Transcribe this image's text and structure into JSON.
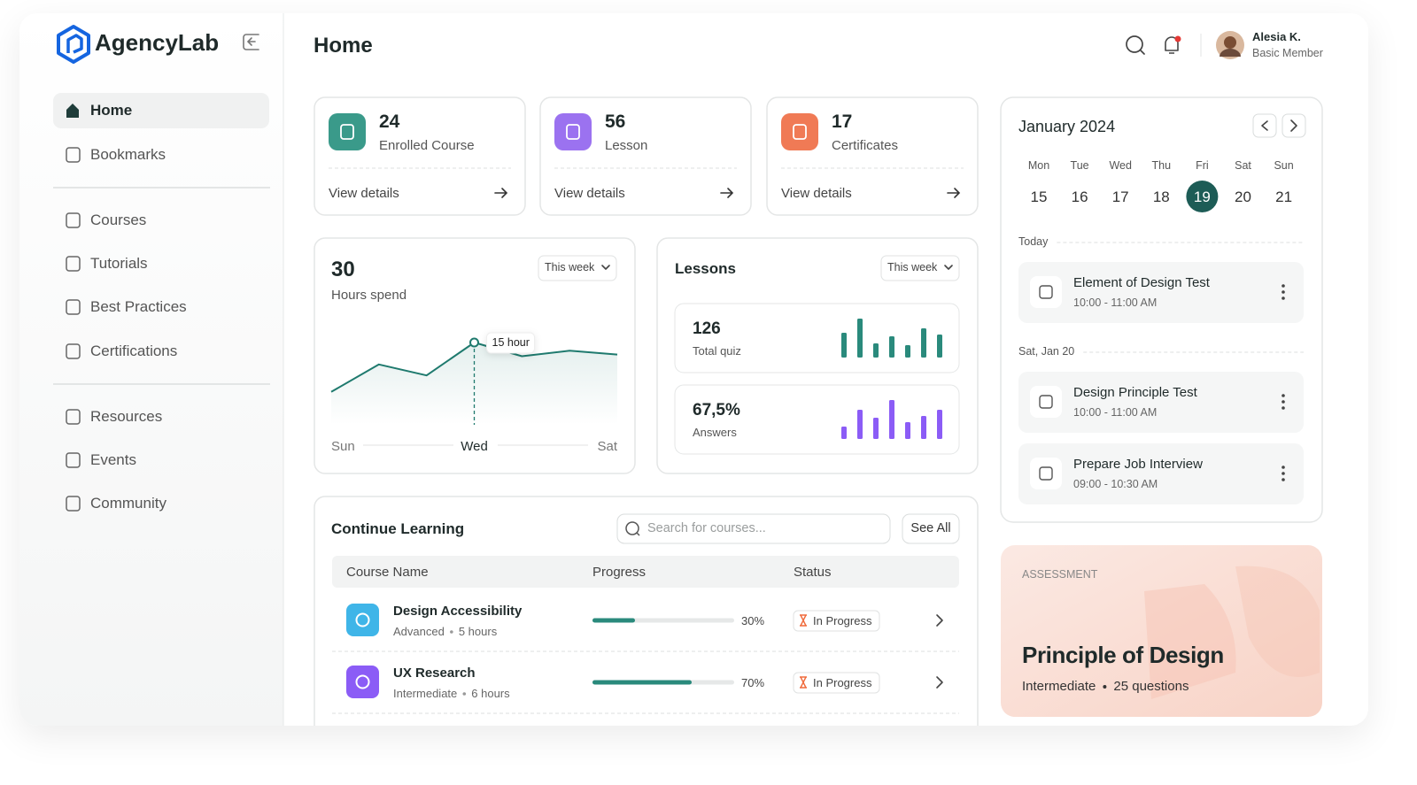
{
  "sidebar": {
    "brand": "AgencyLab",
    "nav_groups": [
      [
        {
          "label": "Home",
          "active": true
        },
        {
          "label": "Bookmarks"
        }
      ],
      [
        {
          "label": "Courses"
        },
        {
          "label": "Tutorials"
        },
        {
          "label": "Best Practices"
        },
        {
          "label": "Certifications"
        }
      ],
      [
        {
          "label": "Resources"
        },
        {
          "label": "Events"
        },
        {
          "label": "Community"
        }
      ]
    ]
  },
  "header": {
    "title": "Home",
    "user": {
      "name": "Alesia K.",
      "role": "Basic Member"
    }
  },
  "stats": [
    {
      "value": 24,
      "label": "Enrolled Course",
      "link": "View details",
      "color": "#3a9a8a"
    },
    {
      "value": 56,
      "label": "Lesson",
      "link": "View details",
      "color": "#9b72f0"
    },
    {
      "value": 17,
      "label": "Certificates",
      "link": "View details",
      "color": "#f07a55"
    }
  ],
  "hours": {
    "total": 30,
    "label": "Hours spend",
    "period": "This week"
  },
  "lessons": {
    "title": "Lessons",
    "period": "This week",
    "items": [
      {
        "value": 126,
        "label": "Total quiz"
      },
      {
        "value": "67,5%",
        "label": "Answers"
      }
    ]
  },
  "chart_data": [
    {
      "type": "line",
      "categories": [
        "Sun",
        null,
        null,
        "Wed",
        null,
        null,
        "Sat"
      ],
      "values": [
        6,
        11,
        9,
        15,
        12.5,
        13.5,
        12.8
      ],
      "value_labels": [
        null,
        null,
        null,
        "15 hour",
        null,
        null,
        null
      ],
      "color": "#1f7a6e"
    },
    {
      "type": "bar",
      "values": [
        28,
        44,
        16,
        24,
        14,
        33,
        26
      ],
      "color": "#2a8a7c"
    },
    {
      "type": "bar",
      "values": [
        14,
        33,
        24,
        44,
        19,
        26,
        33
      ],
      "color": "#8b5cf6"
    }
  ],
  "continue_learning": {
    "title": "Continue Learning",
    "search_placeholder": "Search for courses...",
    "see_all": "See All",
    "columns": [
      "Course Name",
      "Progress",
      "Status"
    ],
    "rows": [
      {
        "name": "Design Accessibility",
        "level": "Advanced",
        "duration": "5 hours",
        "progress": 30,
        "progress_label": "30%",
        "status": "In Progress",
        "color": "#3fb5e8"
      },
      {
        "name": "UX Research",
        "level": "Intermediate",
        "duration": "6 hours",
        "progress": 70,
        "progress_label": "70%",
        "status": "In Progress",
        "color": "#8b5cf6"
      }
    ]
  },
  "calendar": {
    "month": "January 2024",
    "days": [
      {
        "name": "Mon",
        "date": 15
      },
      {
        "name": "Tue",
        "date": 16
      },
      {
        "name": "Wed",
        "date": 17
      },
      {
        "name": "Thu",
        "date": 18
      },
      {
        "name": "Fri",
        "date": 19,
        "selected": true
      },
      {
        "name": "Sat",
        "date": 20
      },
      {
        "name": "Sun",
        "date": 21
      }
    ],
    "groups": [
      {
        "label": "Today",
        "events": [
          {
            "title": "Element of Design Test",
            "time": "10:00 - 11:00 AM"
          }
        ]
      },
      {
        "label": "Sat, Jan 20",
        "events": [
          {
            "title": "Design Principle Test",
            "time": "10:00 - 11:00 AM"
          },
          {
            "title": "Prepare Job Interview",
            "time": "09:00 - 10:30 AM"
          }
        ]
      }
    ]
  },
  "assessment": {
    "tag": "ASSESSMENT",
    "title": "Principle of Design",
    "level": "Intermediate",
    "questions": "25 questions"
  }
}
